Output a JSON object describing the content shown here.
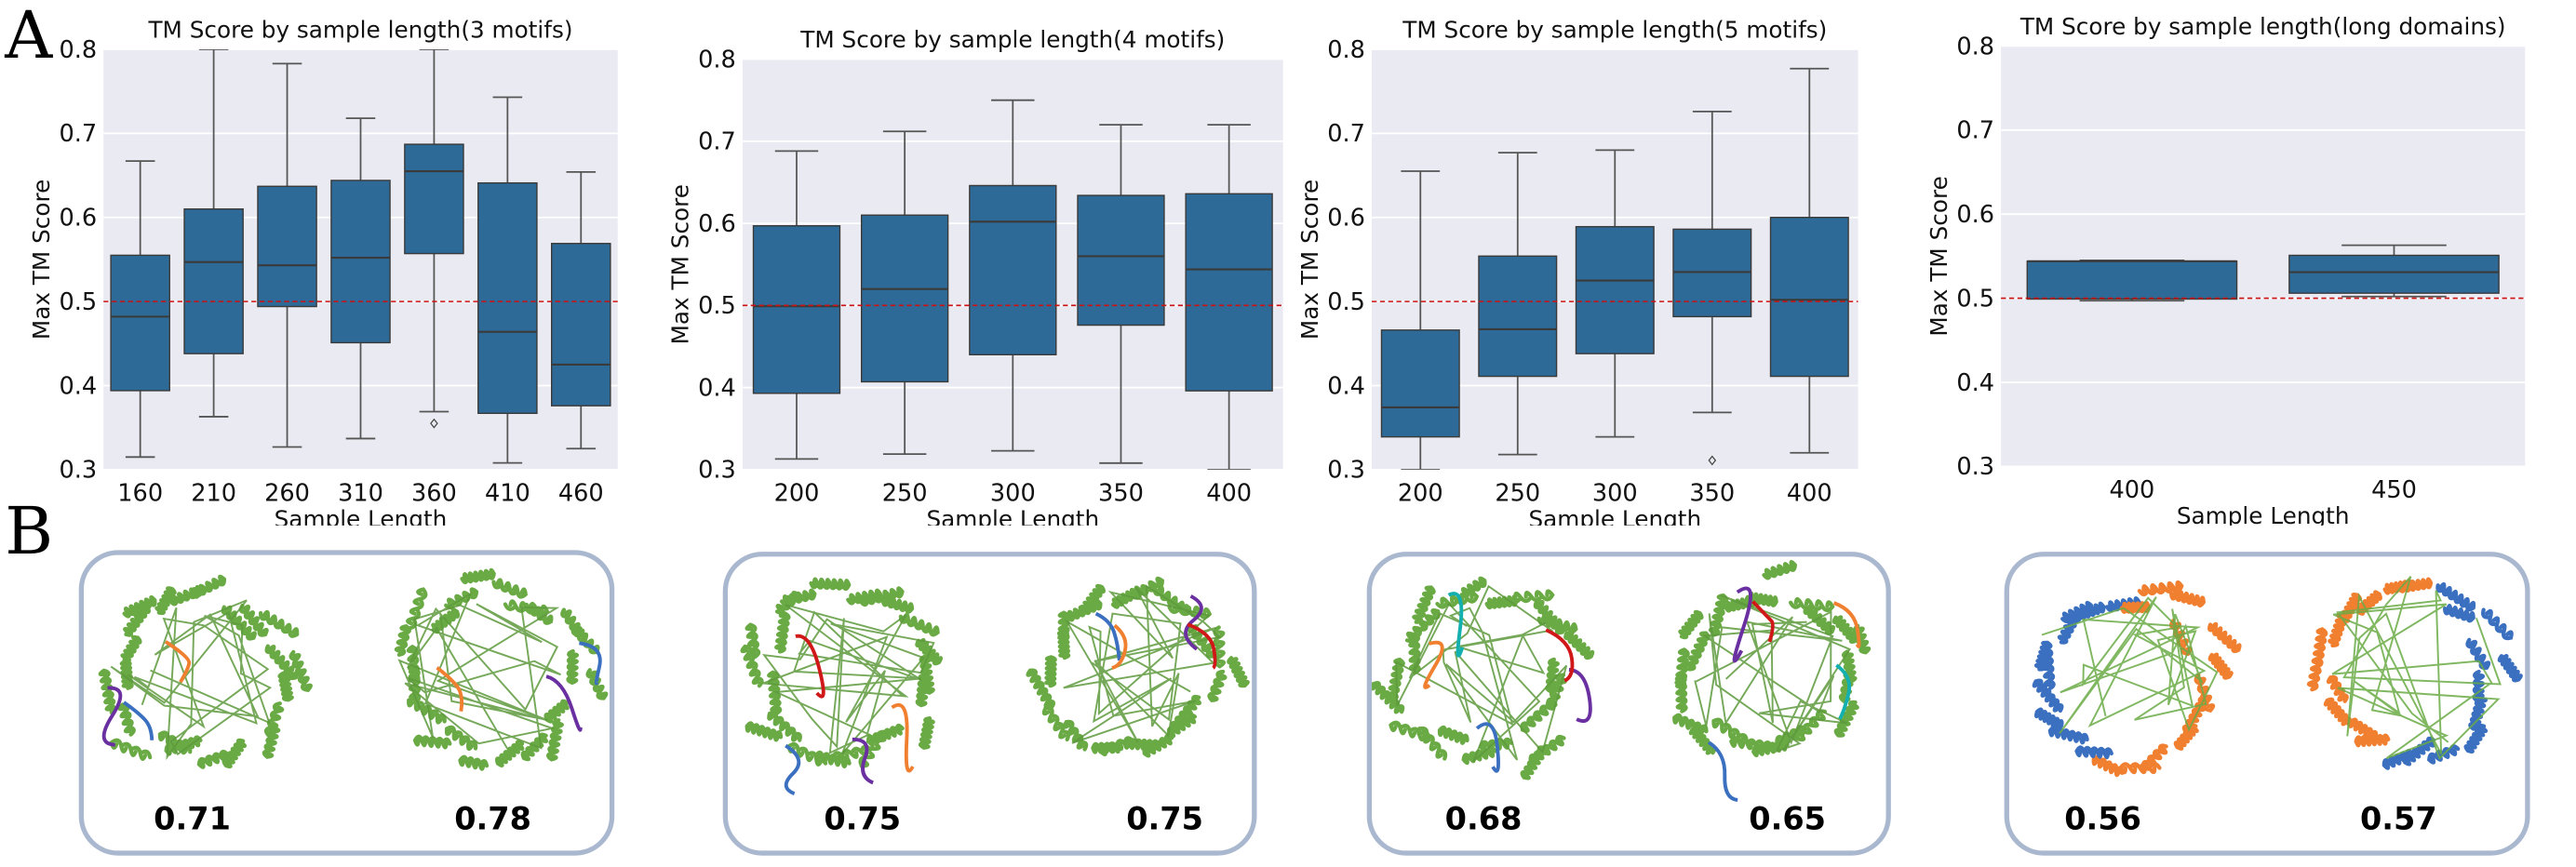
{
  "labels": {
    "panel_a": "A",
    "panel_b": "B"
  },
  "colors": {
    "box_fill": "#2d6a97",
    "box_edge": "#3a3a3a",
    "whisker": "#555555",
    "plot_background": "#eaeaf2",
    "grid": "#ffffff",
    "threshold_line": "#cc1111",
    "structure_border": "#aab8cf",
    "helix_green": "#6aaa45",
    "motif_blue": "#3b6fc0",
    "motif_orange": "#f07f30",
    "motif_purple": "#6a2fa0",
    "motif_red": "#d01818",
    "motif_cyan": "#14b0b0"
  },
  "chart_data": [
    {
      "type": "box",
      "title": "TM Score by sample length(3 motifs)",
      "xlabel": "Sample Length",
      "ylabel": "Max TM Score",
      "ylim": [
        0.3,
        0.8
      ],
      "yticks": [
        "0.3",
        "0.4",
        "0.5",
        "0.6",
        "0.7",
        "0.8"
      ],
      "grid": true,
      "reference_line": 0.5,
      "categories": [
        "160",
        "210",
        "260",
        "310",
        "360",
        "410",
        "460"
      ],
      "boxes": [
        {
          "whisker_low": 0.315,
          "q1": 0.394,
          "median": 0.482,
          "q3": 0.555,
          "whisker_high": 0.667,
          "outliers": []
        },
        {
          "whisker_low": 0.363,
          "q1": 0.438,
          "median": 0.547,
          "q3": 0.61,
          "whisker_high": 0.8,
          "outliers": []
        },
        {
          "whisker_low": 0.327,
          "q1": 0.494,
          "median": 0.543,
          "q3": 0.637,
          "whisker_high": 0.783,
          "outliers": []
        },
        {
          "whisker_low": 0.337,
          "q1": 0.451,
          "median": 0.552,
          "q3": 0.644,
          "whisker_high": 0.718,
          "outliers": []
        },
        {
          "whisker_low": 0.369,
          "q1": 0.557,
          "median": 0.655,
          "q3": 0.687,
          "whisker_high": 0.8,
          "outliers": [
            0.355
          ]
        },
        {
          "whisker_low": 0.308,
          "q1": 0.367,
          "median": 0.464,
          "q3": 0.641,
          "whisker_high": 0.743,
          "outliers": []
        },
        {
          "whisker_low": 0.325,
          "q1": 0.376,
          "median": 0.425,
          "q3": 0.569,
          "whisker_high": 0.654,
          "outliers": []
        }
      ]
    },
    {
      "type": "box",
      "title": "TM Score by sample length(4 motifs)",
      "xlabel": "Sample Length",
      "ylabel": "Max TM Score",
      "ylim": [
        0.3,
        0.8
      ],
      "yticks": [
        "0.3",
        "0.4",
        "0.5",
        "0.6",
        "0.7",
        "0.8"
      ],
      "grid": true,
      "reference_line": 0.5,
      "categories": [
        "200",
        "250",
        "300",
        "350",
        "400"
      ],
      "boxes": [
        {
          "whisker_low": 0.313,
          "q1": 0.393,
          "median": 0.499,
          "q3": 0.597,
          "whisker_high": 0.688,
          "outliers": []
        },
        {
          "whisker_low": 0.319,
          "q1": 0.407,
          "median": 0.52,
          "q3": 0.61,
          "whisker_high": 0.712,
          "outliers": []
        },
        {
          "whisker_low": 0.323,
          "q1": 0.44,
          "median": 0.602,
          "q3": 0.646,
          "whisker_high": 0.75,
          "outliers": []
        },
        {
          "whisker_low": 0.308,
          "q1": 0.476,
          "median": 0.56,
          "q3": 0.634,
          "whisker_high": 0.72,
          "outliers": []
        },
        {
          "whisker_low": 0.3,
          "q1": 0.396,
          "median": 0.544,
          "q3": 0.636,
          "whisker_high": 0.72,
          "outliers": []
        }
      ]
    },
    {
      "type": "box",
      "title": "TM Score by sample length(5 motifs)",
      "xlabel": "Sample Length",
      "ylabel": "Max TM Score",
      "ylim": [
        0.3,
        0.8
      ],
      "yticks": [
        "0.3",
        "0.4",
        "0.5",
        "0.6",
        "0.7",
        "0.8"
      ],
      "grid": true,
      "reference_line": 0.5,
      "categories": [
        "200",
        "250",
        "300",
        "350",
        "400"
      ],
      "boxes": [
        {
          "whisker_low": 0.3,
          "q1": 0.339,
          "median": 0.374,
          "q3": 0.466,
          "whisker_high": 0.655,
          "outliers": []
        },
        {
          "whisker_low": 0.318,
          "q1": 0.411,
          "median": 0.467,
          "q3": 0.554,
          "whisker_high": 0.677,
          "outliers": []
        },
        {
          "whisker_low": 0.339,
          "q1": 0.438,
          "median": 0.525,
          "q3": 0.589,
          "whisker_high": 0.68,
          "outliers": []
        },
        {
          "whisker_low": 0.368,
          "q1": 0.482,
          "median": 0.535,
          "q3": 0.586,
          "whisker_high": 0.726,
          "outliers": [
            0.311
          ]
        },
        {
          "whisker_low": 0.32,
          "q1": 0.411,
          "median": 0.502,
          "q3": 0.6,
          "whisker_high": 0.777,
          "outliers": []
        }
      ]
    },
    {
      "type": "box",
      "title": "TM Score by sample length(long domains)",
      "xlabel": "Sample Length",
      "ylabel": "Max TM Score",
      "ylim": [
        0.3,
        0.8
      ],
      "yticks": [
        "0.3",
        "0.4",
        "0.5",
        "0.6",
        "0.7",
        "0.8"
      ],
      "grid": true,
      "reference_line": 0.5,
      "categories": [
        "400",
        "450"
      ],
      "boxes": [
        {
          "whisker_low": 0.497,
          "q1": 0.499,
          "median": 0.544,
          "q3": 0.544,
          "whisker_high": 0.545,
          "outliers": []
        },
        {
          "whisker_low": 0.502,
          "q1": 0.506,
          "median": 0.531,
          "q3": 0.551,
          "whisker_high": 0.563,
          "outliers": []
        }
      ]
    }
  ],
  "structures": [
    {
      "group": "3 motifs",
      "scores": [
        "0.71",
        "0.78"
      ]
    },
    {
      "group": "4 motifs",
      "scores": [
        "0.75",
        "0.75"
      ]
    },
    {
      "group": "5 motifs",
      "scores": [
        "0.68",
        "0.65"
      ]
    },
    {
      "group": "long domains",
      "scores": [
        "0.56",
        "0.57"
      ]
    }
  ]
}
